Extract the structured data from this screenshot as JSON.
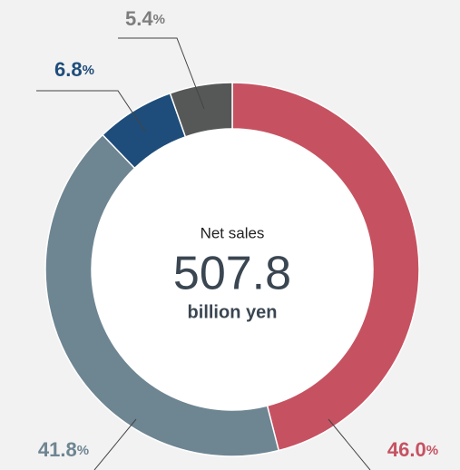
{
  "chart_data": {
    "type": "donut",
    "center_title": "Net sales",
    "center_value": 507.8,
    "center_unit": "billion yen",
    "values": [
      46.0,
      41.8,
      6.8,
      5.4
    ],
    "value_labels": [
      "46.0%",
      "41.8%",
      "6.8%",
      "5.4%"
    ],
    "colors": [
      "#c65261",
      "#6e8592",
      "#1e4d7b",
      "#555856"
    ]
  }
}
